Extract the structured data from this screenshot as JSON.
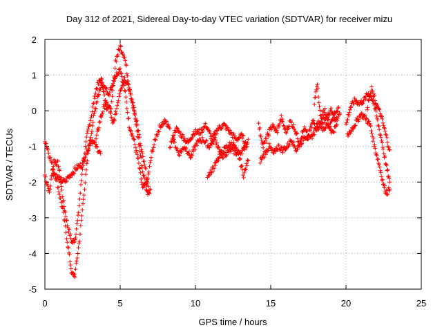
{
  "chart_data": {
    "type": "scatter",
    "title": "Day 312 of 2021, Sidereal Day-to-day VTEC variation (SDTVAR) for receiver mizu",
    "xlabel": "GPS time / hours",
    "ylabel": "SDTVAR / TECUs",
    "xlim": [
      0,
      25
    ],
    "ylim": [
      -5,
      2
    ],
    "xticks": [
      0,
      5,
      10,
      15,
      20,
      25
    ],
    "yticks": [
      -5,
      -4,
      -3,
      -2,
      -1,
      0,
      1,
      2
    ],
    "grid": true,
    "marker": "+",
    "series": [
      {
        "name": "SDTVAR",
        "color": "#ff0000",
        "tracks": [
          [
            [
              0.0,
              -1.8
            ],
            [
              0.3,
              -2.3
            ],
            [
              0.6,
              -1.4
            ],
            [
              0.9,
              -1.5
            ],
            [
              1.2,
              -2.5
            ],
            [
              1.5,
              -3.2
            ],
            [
              1.8,
              -3.7
            ],
            [
              2.0,
              -3.6
            ],
            [
              2.2,
              -3.0
            ],
            [
              2.5,
              -1.6
            ],
            [
              2.8,
              -0.7
            ],
            [
              3.1,
              -0.1
            ],
            [
              3.4,
              0.6
            ],
            [
              3.7,
              0.9
            ],
            [
              4.0,
              0.6
            ],
            [
              4.3,
              0.5
            ],
            [
              4.6,
              0.9
            ],
            [
              5.0,
              1.2
            ],
            [
              5.3,
              0.6
            ],
            [
              5.6,
              -0.4
            ],
            [
              5.9,
              -0.8
            ],
            [
              6.2,
              -1.4
            ],
            [
              6.5,
              -2.2
            ],
            [
              6.8,
              -2.0
            ],
            [
              7.1,
              -1.2
            ],
            [
              7.4,
              -0.7
            ],
            [
              7.7,
              -0.4
            ],
            [
              8.0,
              -0.3
            ],
            [
              8.3,
              -0.5
            ]
          ],
          [
            [
              0.0,
              -0.8
            ],
            [
              0.4,
              -1.4
            ],
            [
              0.8,
              -2.0
            ],
            [
              1.2,
              -2.8
            ],
            [
              1.6,
              -4.0
            ],
            [
              1.8,
              -4.6
            ],
            [
              2.0,
              -4.6
            ],
            [
              2.3,
              -3.6
            ],
            [
              2.6,
              -2.3
            ],
            [
              2.9,
              -1.1
            ],
            [
              3.2,
              -0.3
            ],
            [
              3.5,
              0.4
            ],
            [
              3.8,
              0.8
            ],
            [
              4.1,
              0.1
            ],
            [
              4.4,
              0.0
            ],
            [
              4.7,
              1.4
            ],
            [
              5.0,
              1.8
            ],
            [
              5.3,
              1.5
            ],
            [
              5.6,
              0.7
            ],
            [
              5.9,
              0.1
            ],
            [
              6.2,
              -0.8
            ],
            [
              6.5,
              -1.7
            ],
            [
              6.8,
              -2.3
            ],
            [
              7.0,
              -2.2
            ]
          ],
          [
            [
              0.5,
              -1.7
            ],
            [
              0.9,
              -1.9
            ],
            [
              1.3,
              -2.0
            ],
            [
              1.7,
              -1.8
            ],
            [
              2.1,
              -1.6
            ],
            [
              2.5,
              -1.5
            ],
            [
              2.8,
              -1.1
            ],
            [
              3.1,
              -0.8
            ],
            [
              3.4,
              -1.0
            ],
            [
              3.7,
              -1.2
            ]
          ],
          [
            [
              3.4,
              -0.8
            ],
            [
              3.7,
              -0.2
            ],
            [
              4.0,
              0.2
            ],
            [
              4.3,
              0.1
            ],
            [
              4.5,
              -0.4
            ],
            [
              4.7,
              -0.1
            ],
            [
              5.0,
              0.6
            ],
            [
              5.3,
              0.9
            ],
            [
              5.5,
              0.8
            ],
            [
              5.8,
              0.2
            ],
            [
              6.1,
              -0.3
            ],
            [
              6.4,
              -1.1
            ],
            [
              6.7,
              -1.7
            ],
            [
              6.9,
              -2.3
            ]
          ],
          [
            [
              8.3,
              -1.0
            ],
            [
              8.7,
              -0.5
            ],
            [
              9.1,
              -0.7
            ],
            [
              9.5,
              -0.9
            ],
            [
              9.9,
              -0.6
            ],
            [
              10.3,
              -0.6
            ],
            [
              10.7,
              -0.4
            ],
            [
              11.1,
              -0.8
            ],
            [
              11.5,
              -0.5
            ],
            [
              11.9,
              -0.4
            ],
            [
              12.3,
              -0.6
            ],
            [
              12.7,
              -0.8
            ],
            [
              13.1,
              -0.7
            ],
            [
              13.4,
              -1.0
            ]
          ],
          [
            [
              8.5,
              -0.8
            ],
            [
              8.9,
              -1.2
            ],
            [
              9.3,
              -1.0
            ],
            [
              9.7,
              -1.3
            ],
            [
              10.1,
              -0.9
            ],
            [
              10.5,
              -0.8
            ],
            [
              10.9,
              -1.0
            ],
            [
              11.3,
              -0.8
            ],
            [
              11.7,
              -1.2
            ],
            [
              12.1,
              -1.0
            ],
            [
              12.5,
              -0.9
            ],
            [
              12.9,
              -1.3
            ],
            [
              13.2,
              -1.8
            ],
            [
              13.5,
              -1.4
            ]
          ],
          [
            [
              10.8,
              -1.8
            ],
            [
              11.2,
              -1.6
            ],
            [
              11.6,
              -1.3
            ],
            [
              12.0,
              -1.2
            ],
            [
              12.4,
              -1.1
            ],
            [
              12.8,
              -1.2
            ],
            [
              13.2,
              -1.1
            ],
            [
              13.5,
              -0.8
            ]
          ],
          [
            [
              14.2,
              -0.4
            ],
            [
              14.5,
              -1.0
            ],
            [
              14.8,
              -0.7
            ],
            [
              15.1,
              -0.4
            ],
            [
              15.4,
              -0.6
            ],
            [
              15.7,
              -0.2
            ],
            [
              16.0,
              -0.6
            ],
            [
              16.3,
              -0.3
            ],
            [
              16.6,
              -0.5
            ],
            [
              16.9,
              -0.9
            ],
            [
              17.2,
              -0.5
            ],
            [
              17.5,
              -0.7
            ],
            [
              17.8,
              -0.3
            ],
            [
              18.1,
              -0.5
            ],
            [
              18.4,
              -0.3
            ],
            [
              18.7,
              -0.2
            ],
            [
              19.0,
              0.0
            ],
            [
              19.3,
              -0.3
            ],
            [
              19.6,
              -0.1
            ]
          ],
          [
            [
              14.3,
              -1.4
            ],
            [
              14.6,
              -1.2
            ],
            [
              14.9,
              -1.0
            ],
            [
              15.2,
              -1.2
            ],
            [
              15.5,
              -1.0
            ],
            [
              15.8,
              -1.1
            ],
            [
              16.1,
              -1.0
            ],
            [
              16.4,
              -0.8
            ],
            [
              16.7,
              -1.1
            ],
            [
              17.0,
              -0.9
            ],
            [
              17.3,
              -0.7
            ],
            [
              17.6,
              -0.8
            ],
            [
              17.9,
              -0.6
            ],
            [
              18.2,
              -0.3
            ],
            [
              18.5,
              -0.5
            ],
            [
              18.8,
              -0.4
            ],
            [
              19.1,
              -0.6
            ],
            [
              19.4,
              -0.4
            ]
          ],
          [
            [
              17.9,
              0.2
            ],
            [
              18.1,
              0.8
            ],
            [
              18.3,
              -0.2
            ],
            [
              18.6,
              0.0
            ],
            [
              18.9,
              -0.4
            ],
            [
              19.2,
              -0.1
            ],
            [
              19.5,
              0.1
            ]
          ],
          [
            [
              20.0,
              -0.4
            ],
            [
              20.3,
              0.1
            ],
            [
              20.6,
              0.3
            ],
            [
              20.9,
              0.2
            ],
            [
              21.2,
              0.3
            ],
            [
              21.5,
              0.5
            ],
            [
              21.8,
              0.3
            ],
            [
              22.1,
              -0.3
            ],
            [
              22.4,
              -0.9
            ],
            [
              22.7,
              -1.6
            ],
            [
              22.9,
              -2.0
            ]
          ],
          [
            [
              20.1,
              -0.7
            ],
            [
              20.4,
              -0.5
            ],
            [
              20.7,
              -0.3
            ],
            [
              21.0,
              -0.1
            ],
            [
              21.3,
              -0.2
            ],
            [
              21.6,
              -0.4
            ],
            [
              21.9,
              -1.0
            ],
            [
              22.2,
              -1.5
            ],
            [
              22.5,
              -2.1
            ],
            [
              22.7,
              -2.3
            ],
            [
              22.9,
              -2.2
            ]
          ],
          [
            [
              21.4,
              0.1
            ],
            [
              21.7,
              0.6
            ],
            [
              22.0,
              0.2
            ],
            [
              22.3,
              -0.1
            ],
            [
              22.6,
              -0.6
            ],
            [
              22.9,
              -1.1
            ]
          ]
        ]
      }
    ]
  }
}
